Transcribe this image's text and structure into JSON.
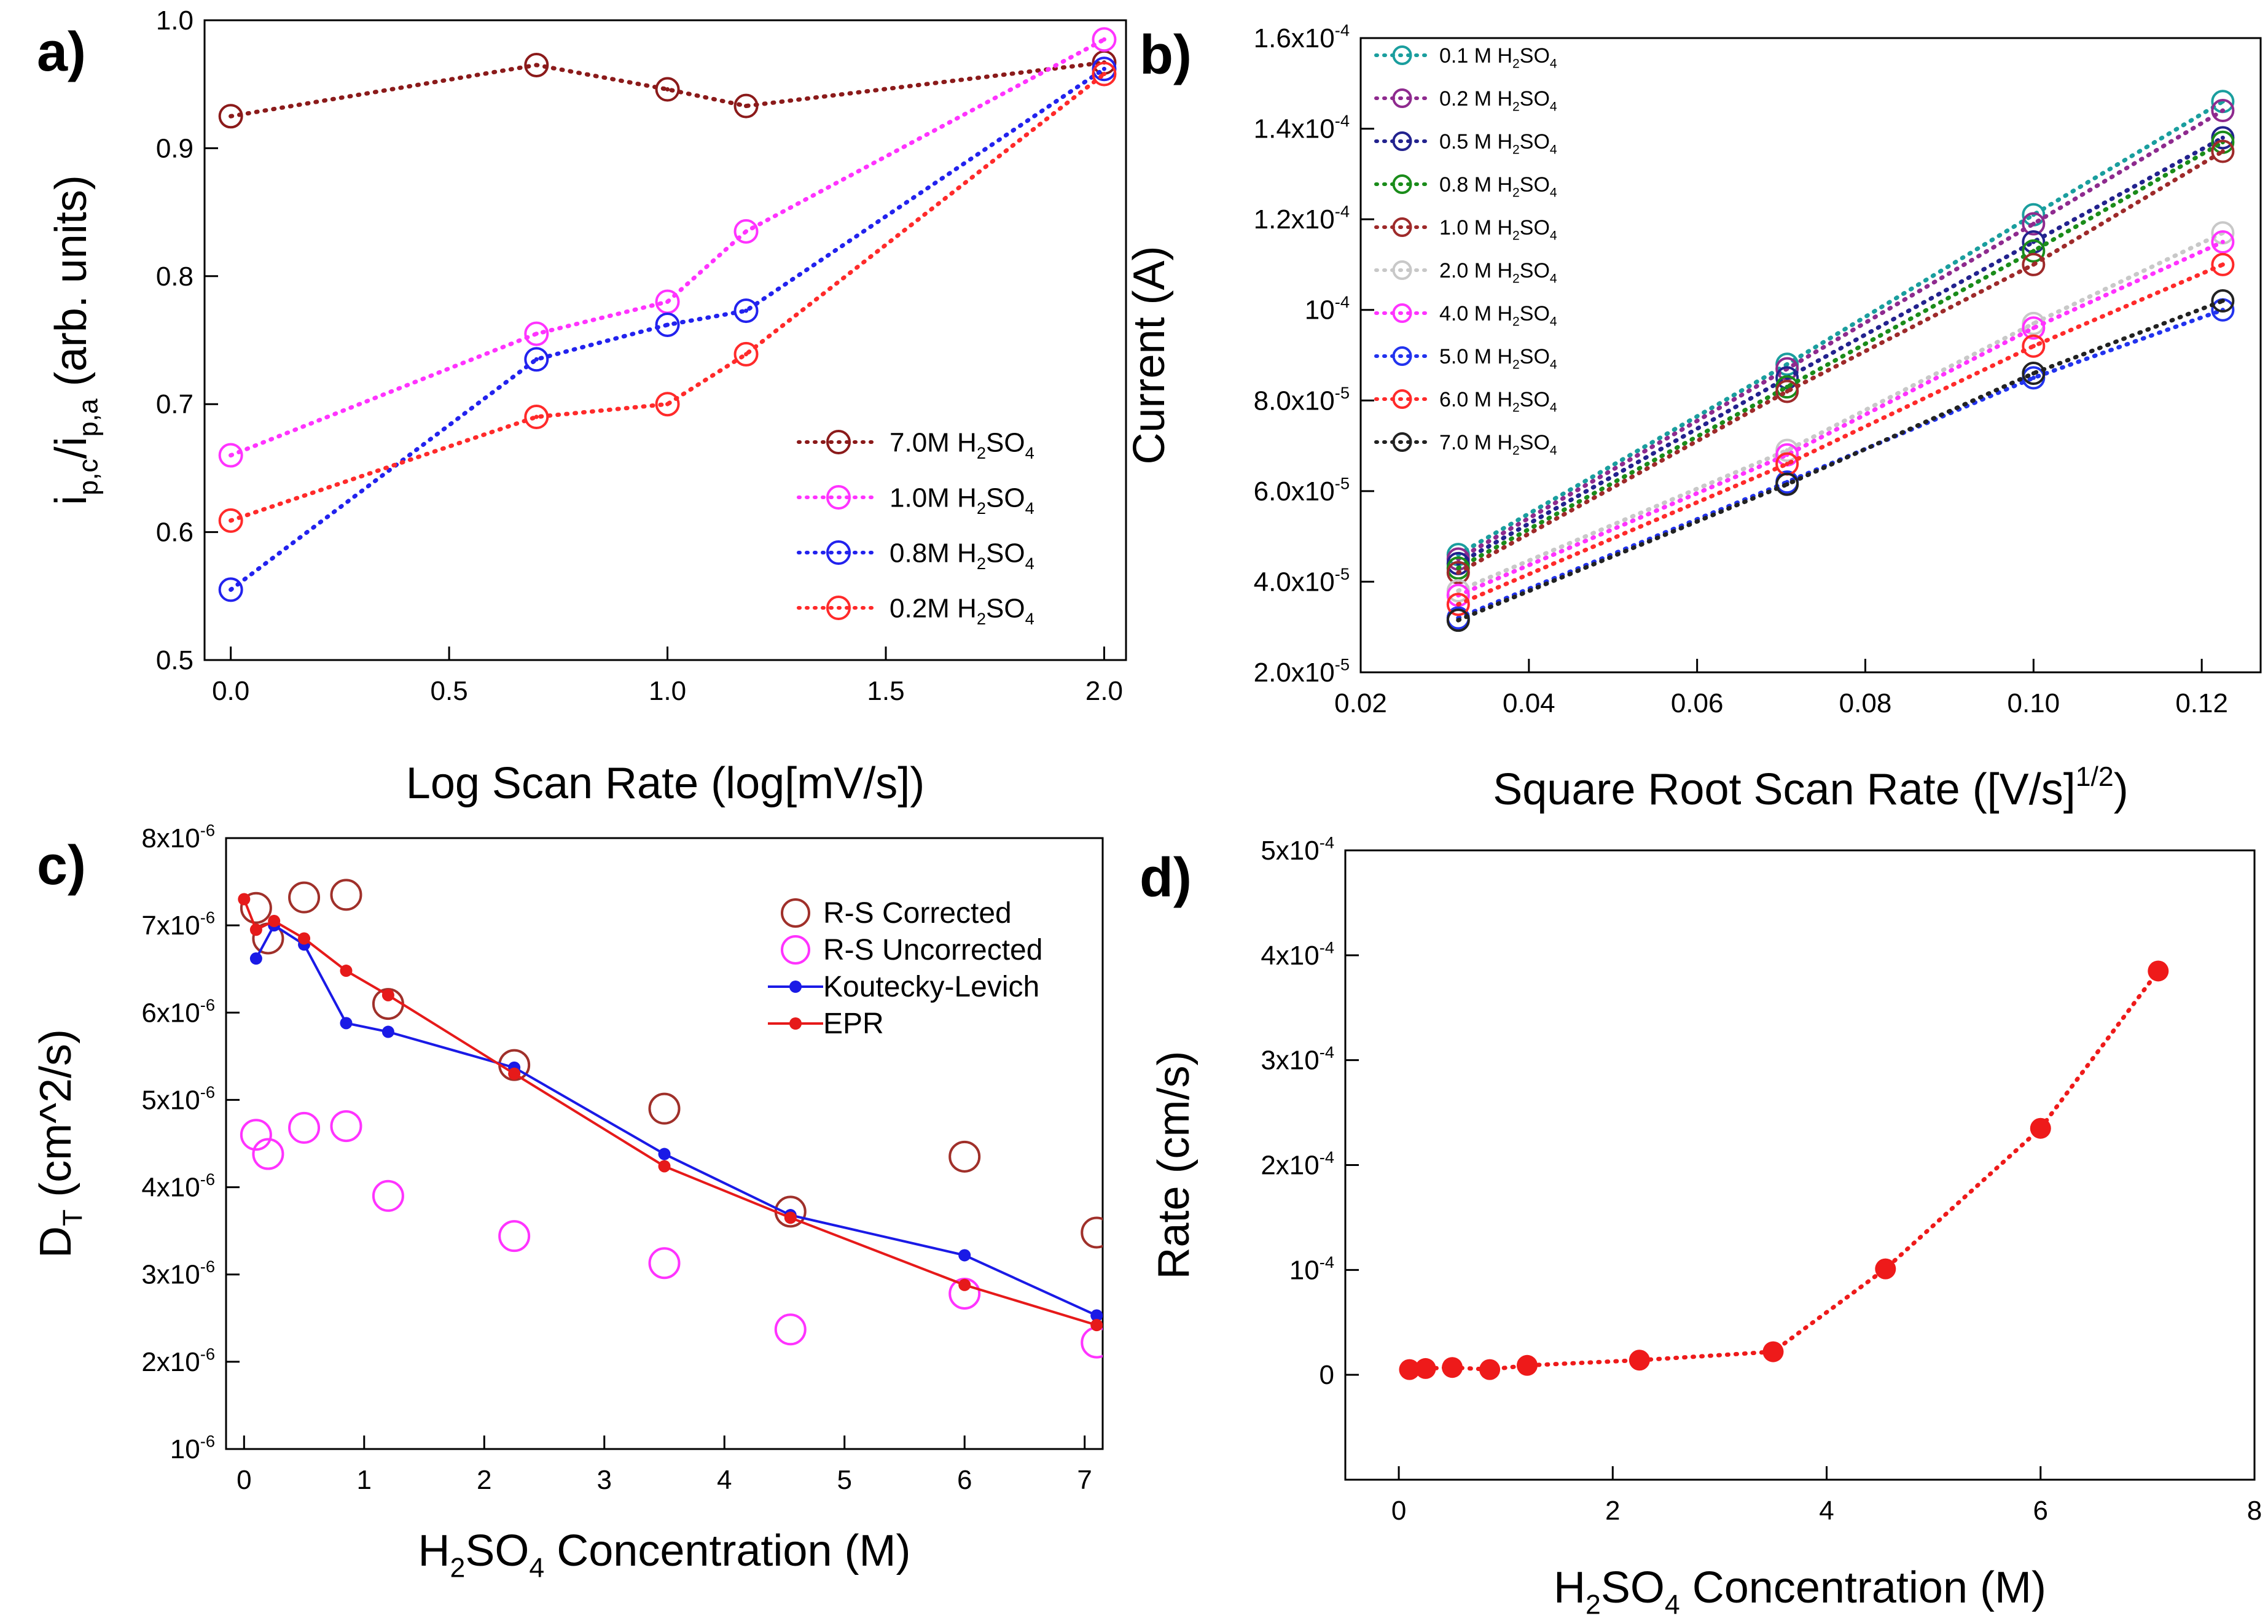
{
  "chart_data": [
    {
      "panel": "a)",
      "type": "line",
      "xlabel": "Log Scan Rate (log[mV/s])",
      "ylabel": "i_{p,c}/i_{p,a} (arb. units)",
      "xlim": [
        -0.06,
        2.05
      ],
      "ylim": [
        0.5,
        1.0
      ],
      "xticks": [
        {
          "v": 0.0,
          "t": "0.0"
        },
        {
          "v": 0.5,
          "t": "0.5"
        },
        {
          "v": 1.0,
          "t": "1.0"
        },
        {
          "v": 1.5,
          "t": "1.5"
        },
        {
          "v": 2.0,
          "t": "2.0"
        }
      ],
      "yticks": [
        {
          "v": 0.5,
          "t": "0.5"
        },
        {
          "v": 0.6,
          "t": "0.6"
        },
        {
          "v": 0.7,
          "t": "0.7"
        },
        {
          "v": 0.8,
          "t": "0.8"
        },
        {
          "v": 0.9,
          "t": "0.9"
        },
        {
          "v": 1.0,
          "t": "1.0"
        }
      ],
      "legend_position": "bottom-right",
      "series": [
        {
          "name": "7.0M H_2SO_4",
          "color": "#8b1a1a",
          "style": "dotted-circle",
          "x": [
            0,
            0.7,
            1.0,
            1.18,
            2.0
          ],
          "y": [
            0.925,
            0.965,
            0.946,
            0.933,
            0.967
          ]
        },
        {
          "name": "1.0M H_2SO_4",
          "color": "#ff33ff",
          "style": "dotted-circle",
          "x": [
            0,
            0.7,
            1.0,
            1.18,
            2.0
          ],
          "y": [
            0.66,
            0.755,
            0.78,
            0.835,
            0.985
          ]
        },
        {
          "name": "0.8M H_2SO_4",
          "color": "#2222ee",
          "style": "dotted-circle",
          "x": [
            0,
            0.7,
            1.0,
            1.18,
            2.0
          ],
          "y": [
            0.555,
            0.735,
            0.762,
            0.773,
            0.962
          ]
        },
        {
          "name": "0.2M H_2SO_4",
          "color": "#ff2a2a",
          "style": "dotted-circle",
          "x": [
            0,
            0.7,
            1.0,
            1.18,
            2.0
          ],
          "y": [
            0.609,
            0.69,
            0.7,
            0.739,
            0.958
          ]
        }
      ]
    },
    {
      "panel": "b)",
      "type": "line",
      "xlabel": "Square Root Scan Rate ([V/s]^{1/2})",
      "ylabel": "Current (A)",
      "xlim": [
        0.02,
        0.127
      ],
      "ylim": [
        2e-05,
        0.00016
      ],
      "xticks": [
        {
          "v": 0.02,
          "t": "0.02"
        },
        {
          "v": 0.04,
          "t": "0.04"
        },
        {
          "v": 0.06,
          "t": "0.06"
        },
        {
          "v": 0.08,
          "t": "0.08"
        },
        {
          "v": 0.1,
          "t": "0.10"
        },
        {
          "v": 0.12,
          "t": "0.12"
        }
      ],
      "yticks": [
        {
          "v": 2e-05,
          "t": "2.0x10^{-5}"
        },
        {
          "v": 4e-05,
          "t": "4.0x10^{-5}"
        },
        {
          "v": 6e-05,
          "t": "6.0x10^{-5}"
        },
        {
          "v": 8e-05,
          "t": "8.0x10^{-5}"
        },
        {
          "v": 0.0001,
          "t": "10^{-4}"
        },
        {
          "v": 0.00012,
          "t": "1.2x10^{-4}"
        },
        {
          "v": 0.00014,
          "t": "1.4x10^{-4}"
        },
        {
          "v": 0.00016,
          "t": "1.6x10^{-4}"
        }
      ],
      "legend_position": "top-left",
      "series": [
        {
          "name": "0.1 M H_2SO_4",
          "color": "#1a9e9e",
          "style": "dotted-circle",
          "x": [
            0.0316,
            0.0707,
            0.1,
            0.1225
          ],
          "y": [
            4.6e-05,
            8.8e-05,
            0.000121,
            0.000146
          ]
        },
        {
          "name": "0.2 M H_2SO_4",
          "color": "#8e2a8e",
          "style": "dotted-circle",
          "x": [
            0.0316,
            0.0707,
            0.1,
            0.1225
          ],
          "y": [
            4.5e-05,
            8.7e-05,
            0.000119,
            0.000144
          ]
        },
        {
          "name": "0.5 M H_2SO_4",
          "color": "#22228e",
          "style": "dotted-circle",
          "x": [
            0.0316,
            0.0707,
            0.1,
            0.1225
          ],
          "y": [
            4.4e-05,
            8.5e-05,
            0.000115,
            0.000138
          ]
        },
        {
          "name": "0.8 M H_2SO_4",
          "color": "#1a8c1a",
          "style": "dotted-circle",
          "x": [
            0.0316,
            0.0707,
            0.1,
            0.1225
          ],
          "y": [
            4.3e-05,
            8.3e-05,
            0.000113,
            0.000137
          ]
        },
        {
          "name": "1.0 M H_2SO_4",
          "color": "#9e2a2a",
          "style": "dotted-circle",
          "x": [
            0.0316,
            0.0707,
            0.1,
            0.1225
          ],
          "y": [
            4.2e-05,
            8.2e-05,
            0.00011,
            0.000135
          ]
        },
        {
          "name": "2.0 M H_2SO_4",
          "color": "#c8c8c8",
          "style": "dotted-circle",
          "x": [
            0.0316,
            0.0707,
            0.1,
            0.1225
          ],
          "y": [
            3.8e-05,
            6.9e-05,
            9.7e-05,
            0.000117
          ]
        },
        {
          "name": "4.0 M H_2SO_4",
          "color": "#ff33ff",
          "style": "dotted-circle",
          "x": [
            0.0316,
            0.0707,
            0.1,
            0.1225
          ],
          "y": [
            3.7e-05,
            6.8e-05,
            9.6e-05,
            0.000115
          ]
        },
        {
          "name": "5.0 M H_2SO_4",
          "color": "#2233ee",
          "style": "dotted-circle",
          "x": [
            0.0316,
            0.0707,
            0.1,
            0.1225
          ],
          "y": [
            3.2e-05,
            6.2e-05,
            8.5e-05,
            0.0001
          ]
        },
        {
          "name": "6.0 M H_2SO_4",
          "color": "#ff2a2a",
          "style": "dotted-circle",
          "x": [
            0.0316,
            0.0707,
            0.1,
            0.1225
          ],
          "y": [
            3.5e-05,
            6.6e-05,
            9.2e-05,
            0.00011
          ]
        },
        {
          "name": "7.0 M H_2SO_4",
          "color": "#222222",
          "style": "dotted-circle",
          "x": [
            0.0316,
            0.0707,
            0.1,
            0.1225
          ],
          "y": [
            3.15e-05,
            6.15e-05,
            8.6e-05,
            0.000102
          ]
        }
      ]
    },
    {
      "panel": "c)",
      "type": "scatter",
      "xlabel": "H_2SO_4 Concentration (M)",
      "ylabel": "D_T (cm^2/s)",
      "xlim": [
        -0.15,
        7.15
      ],
      "ylim": [
        1e-06,
        8e-06
      ],
      "xticks": [
        {
          "v": 0,
          "t": "0"
        },
        {
          "v": 1,
          "t": "1"
        },
        {
          "v": 2,
          "t": "2"
        },
        {
          "v": 3,
          "t": "3"
        },
        {
          "v": 4,
          "t": "4"
        },
        {
          "v": 5,
          "t": "5"
        },
        {
          "v": 6,
          "t": "6"
        },
        {
          "v": 7,
          "t": "7"
        }
      ],
      "yticks": [
        {
          "v": 1e-06,
          "t": "10^{-6}"
        },
        {
          "v": 2e-06,
          "t": "2x10^{-6}"
        },
        {
          "v": 3e-06,
          "t": "3x10^{-6}"
        },
        {
          "v": 4e-06,
          "t": "4x10^{-6}"
        },
        {
          "v": 5e-06,
          "t": "5x10^{-6}"
        },
        {
          "v": 6e-06,
          "t": "6x10^{-6}"
        },
        {
          "v": 7e-06,
          "t": "7x10^{-6}"
        },
        {
          "v": 8e-06,
          "t": "8x10^{-6}"
        }
      ],
      "legend_position": "top-right",
      "series": [
        {
          "name": "R-S Corrected",
          "color": "#a0302a",
          "style": "open-circle",
          "x": [
            0.1,
            0.2,
            0.5,
            0.85,
            1.2,
            2.25,
            3.5,
            4.55,
            6.0,
            7.1
          ],
          "y": [
            7.2e-06,
            6.85e-06,
            7.32e-06,
            7.35e-06,
            6.1e-06,
            5.4e-06,
            4.9e-06,
            3.72e-06,
            4.35e-06,
            3.48e-06
          ]
        },
        {
          "name": "R-S Uncorrected",
          "color": "#ff33ff",
          "style": "open-circle",
          "x": [
            0.1,
            0.2,
            0.5,
            0.85,
            1.2,
            2.25,
            3.5,
            4.55,
            6.0,
            7.1
          ],
          "y": [
            4.6e-06,
            4.38e-06,
            4.68e-06,
            4.7e-06,
            3.9e-06,
            3.44e-06,
            3.13e-06,
            2.37e-06,
            2.78e-06,
            2.22e-06
          ]
        },
        {
          "name": "Koutecky-Levich",
          "color": "#1a1ae6",
          "style": "solid-dot",
          "x": [
            0.1,
            0.25,
            0.5,
            0.85,
            1.2,
            2.25,
            3.5,
            4.55,
            6.0,
            7.1
          ],
          "y": [
            6.62e-06,
            7e-06,
            6.78e-06,
            5.88e-06,
            5.78e-06,
            5.37e-06,
            4.38e-06,
            3.68e-06,
            3.22e-06,
            2.53e-06
          ]
        },
        {
          "name": "EPR",
          "color": "#e61a1a",
          "style": "solid-dot",
          "x": [
            0.0,
            0.1,
            0.25,
            0.5,
            0.85,
            1.2,
            2.25,
            3.5,
            4.55,
            6.0,
            7.1
          ],
          "y": [
            7.3e-06,
            6.95e-06,
            7.05e-06,
            6.85e-06,
            6.48e-06,
            6.2e-06,
            5.3e-06,
            4.24e-06,
            3.65e-06,
            2.88e-06,
            2.42e-06
          ]
        }
      ]
    },
    {
      "panel": "d)",
      "type": "line",
      "xlabel": "H_2SO_4 Concentration (M)",
      "ylabel": "Rate (cm/s)",
      "xlim": [
        -0.5,
        8.0
      ],
      "ylim": [
        -0.0001,
        0.0005
      ],
      "xticks": [
        {
          "v": 0,
          "t": "0"
        },
        {
          "v": 2,
          "t": "2"
        },
        {
          "v": 4,
          "t": "4"
        },
        {
          "v": 6,
          "t": "6"
        },
        {
          "v": 8,
          "t": "8"
        }
      ],
      "yticks": [
        {
          "v": 0,
          "t": "0"
        },
        {
          "v": 0.0001,
          "t": "10^{-4}"
        },
        {
          "v": 0.0002,
          "t": "2x10^{-4}"
        },
        {
          "v": 0.0003,
          "t": "3x10^{-4}"
        },
        {
          "v": 0.0004,
          "t": "4x10^{-4}"
        },
        {
          "v": 0.0005,
          "t": "5x10^{-4}"
        }
      ],
      "series": [
        {
          "name": "",
          "color": "#ee1a1a",
          "style": "dotted-dot",
          "x": [
            0.1,
            0.25,
            0.5,
            0.85,
            1.2,
            2.25,
            3.5,
            4.55,
            6.0,
            7.1
          ],
          "y": [
            5e-06,
            6e-06,
            7e-06,
            5e-06,
            9e-06,
            1.4e-05,
            2.2e-05,
            0.000101,
            0.000235,
            0.000385
          ]
        }
      ]
    }
  ]
}
